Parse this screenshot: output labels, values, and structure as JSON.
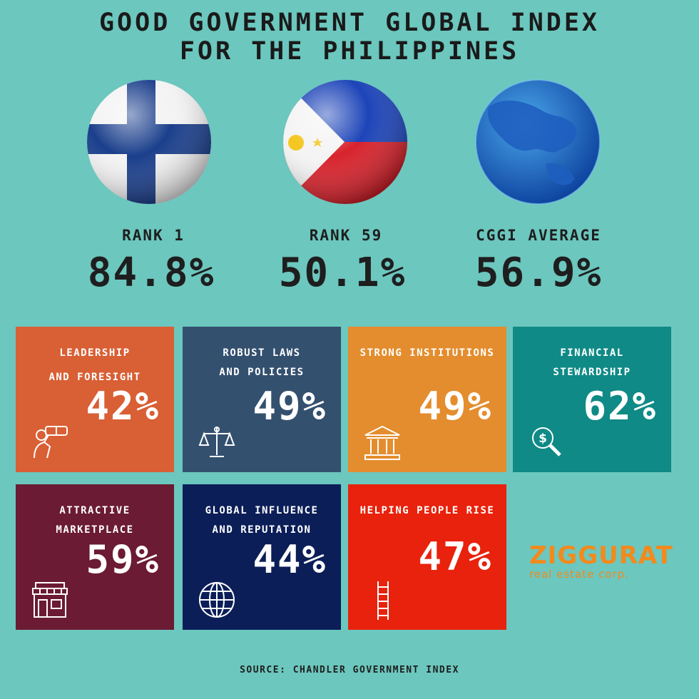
{
  "title": {
    "line1": "GOOD GOVERNMENT GLOBAL INDEX",
    "line2": "FOR THE PHILIPPINES"
  },
  "rankings": [
    {
      "label": "RANK 1",
      "value": "84.8%",
      "icon": "finland-flag-globe-icon"
    },
    {
      "label": "RANK 59",
      "value": "50.1%",
      "icon": "philippines-flag-globe-icon"
    },
    {
      "label": "CGGI AVERAGE",
      "value": "56.9%",
      "icon": "earth-globe-icon"
    }
  ],
  "pillars": [
    {
      "label": "LEADERSHIP\nAND FORESIGHT",
      "value": "42%",
      "color": "#d95f35",
      "icon": "binoculars-icon"
    },
    {
      "label": "ROBUST LAWS\nAND POLICIES",
      "value": "49%",
      "color": "#34506f",
      "icon": "scales-icon"
    },
    {
      "label": "STRONG INSTITUTIONS",
      "value": "49%",
      "color": "#e48d2e",
      "icon": "institution-building-icon"
    },
    {
      "label": "FINANCIAL\nSTEWARDSHIP",
      "value": "62%",
      "color": "#0f8a86",
      "icon": "money-magnifier-icon"
    },
    {
      "label": "ATTRACTIVE\nMARKETPLACE",
      "value": "59%",
      "color": "#6b1b33",
      "icon": "storefront-icon"
    },
    {
      "label": "GLOBAL INFLUENCE\nAND REPUTATION",
      "value": "44%",
      "color": "#0b1e58",
      "icon": "globe-grid-icon"
    },
    {
      "label": "HELPING PEOPLE RISE",
      "value": "47%",
      "color": "#e8220c",
      "icon": "ladder-icon"
    }
  ],
  "logo": {
    "name": "ZIGGURAT",
    "sub": "real estate corp.",
    "color": "#f28a1c"
  },
  "source": "SOURCE: CHANDLER GOVERNMENT INDEX"
}
